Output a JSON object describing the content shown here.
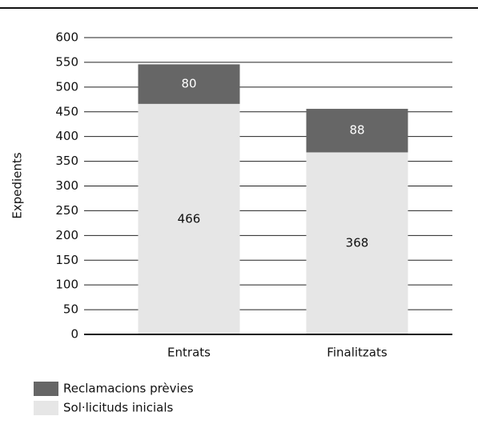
{
  "chart_data": {
    "type": "stacked_bar",
    "ylabel": "Expedients",
    "categories": [
      "Entrats",
      "Finalitzats"
    ],
    "series": [
      {
        "name": "Sol·licituds inicials",
        "color": "#e6e6e6",
        "values": [
          466,
          368
        ]
      },
      {
        "name": "Reclamacions prèvies",
        "color": "#666666",
        "values": [
          80,
          88
        ]
      }
    ],
    "ylim": [
      0,
      600
    ],
    "yticks": [
      0,
      50,
      100,
      150,
      200,
      250,
      300,
      350,
      400,
      450,
      500,
      550,
      600
    ],
    "grid": true
  }
}
